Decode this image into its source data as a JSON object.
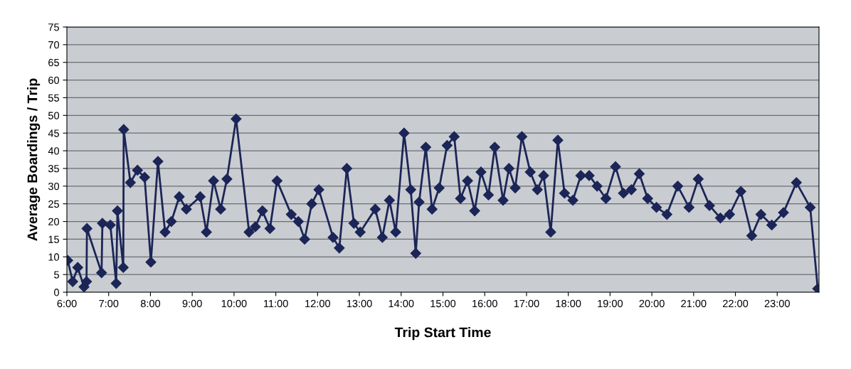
{
  "chart_data": {
    "type": "line",
    "xlabel": "Trip Start Time",
    "ylabel": "Average Boardings / Trip",
    "x": [
      6.02,
      6.14,
      6.26,
      6.41,
      6.47,
      6.48,
      6.83,
      6.85,
      7.04,
      7.18,
      7.21,
      7.35,
      7.36,
      7.52,
      7.69,
      7.86,
      8.01,
      8.18,
      8.35,
      8.5,
      8.69,
      8.86,
      9.19,
      9.34,
      9.51,
      9.68,
      9.83,
      10.05,
      10.36,
      10.51,
      10.68,
      10.86,
      11.03,
      11.37,
      11.54,
      11.69,
      11.86,
      12.03,
      12.37,
      12.52,
      12.7,
      12.87,
      13.02,
      13.38,
      13.55,
      13.72,
      13.87,
      14.07,
      14.23,
      14.35,
      14.43,
      14.59,
      14.74,
      14.91,
      15.1,
      15.27,
      15.42,
      15.59,
      15.76,
      15.91,
      16.09,
      16.24,
      16.44,
      16.58,
      16.73,
      16.89,
      17.09,
      17.26,
      17.41,
      17.58,
      17.75,
      17.91,
      18.11,
      18.3,
      18.5,
      18.69,
      18.9,
      19.13,
      19.32,
      19.51,
      19.7,
      19.9,
      20.11,
      20.36,
      20.62,
      20.89,
      21.11,
      21.38,
      21.64,
      21.86,
      22.13,
      22.39,
      22.61,
      22.87,
      23.15,
      23.46,
      23.79,
      23.97
    ],
    "series": [
      {
        "color": "#1c2557",
        "values": [
          9,
          3,
          7,
          1.5,
          3,
          18,
          5.5,
          19.5,
          19,
          2.5,
          23,
          7,
          46,
          31,
          34.5,
          32.5,
          8.5,
          37,
          17,
          20,
          27,
          23.5,
          27,
          17,
          31.5,
          23.5,
          32,
          49,
          17,
          18.5,
          23,
          18,
          31.5,
          22,
          20,
          15,
          25,
          29,
          15.5,
          12.5,
          35,
          19.5,
          17,
          23.5,
          15.5,
          26,
          17,
          45,
          29,
          11,
          25.5,
          41,
          23.5,
          29.5,
          41.5,
          44,
          26.5,
          31.5,
          23,
          34,
          27.5,
          41,
          26,
          35,
          29.5,
          44,
          34,
          29,
          33,
          17,
          43,
          28,
          26,
          33,
          33,
          30,
          26.5,
          35.5,
          28,
          29,
          33.5,
          26.5,
          24,
          22,
          30,
          24,
          32,
          24.5,
          21,
          22,
          28.5,
          16,
          22,
          19,
          22.5,
          31,
          24,
          1
        ]
      }
    ],
    "xlim": [
      6,
      24
    ],
    "xticks": [
      {
        "value": 6,
        "label": "6:00"
      },
      {
        "value": 7,
        "label": "7:00"
      },
      {
        "value": 8,
        "label": "8:00"
      },
      {
        "value": 9,
        "label": "9:00"
      },
      {
        "value": 10,
        "label": "10:00"
      },
      {
        "value": 11,
        "label": "11:00"
      },
      {
        "value": 12,
        "label": "12:00"
      },
      {
        "value": 13,
        "label": "13:00"
      },
      {
        "value": 14,
        "label": "14:00"
      },
      {
        "value": 15,
        "label": "15:00"
      },
      {
        "value": 16,
        "label": "16:00"
      },
      {
        "value": 17,
        "label": "17:00"
      },
      {
        "value": 18,
        "label": "18:00"
      },
      {
        "value": 19,
        "label": "19:00"
      },
      {
        "value": 20,
        "label": "20:00"
      },
      {
        "value": 21,
        "label": "21:00"
      },
      {
        "value": 22,
        "label": "22:00"
      },
      {
        "value": 23,
        "label": "23:00"
      }
    ],
    "ylim": [
      0,
      75
    ],
    "yticks": [
      0,
      5,
      10,
      15,
      20,
      25,
      30,
      35,
      40,
      45,
      50,
      55,
      60,
      65,
      70,
      75
    ],
    "grid": "y",
    "marker": "diamond",
    "line_style": "solid",
    "legend": false
  }
}
